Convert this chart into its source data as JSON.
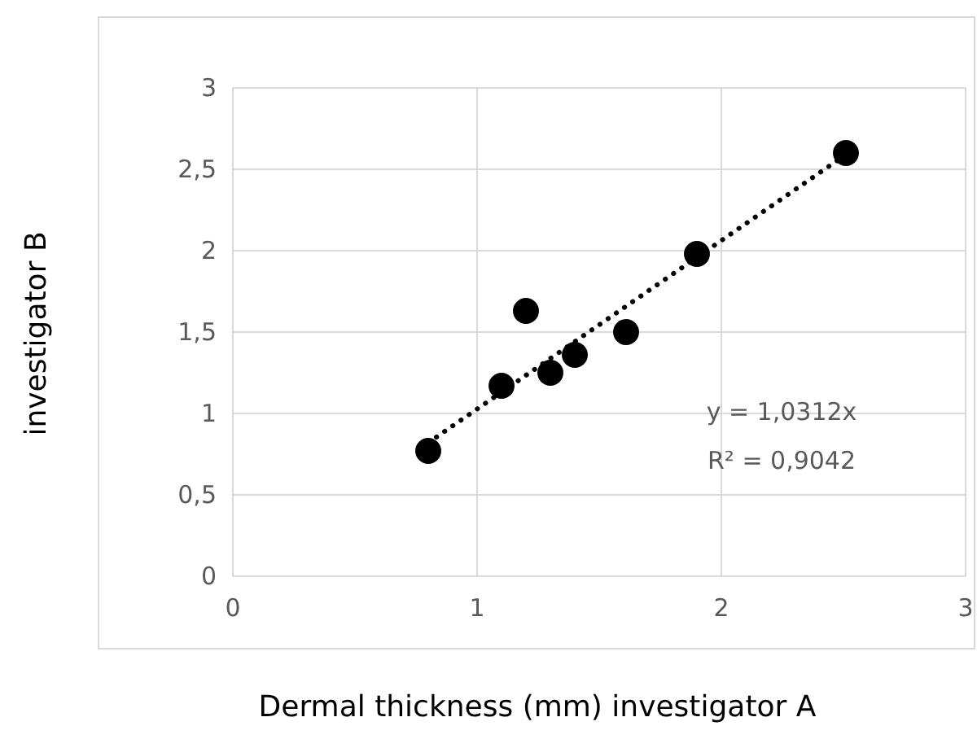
{
  "chart_data": {
    "type": "scatter",
    "xlabel": "Dermal thickness (mm) investigator A",
    "ylabel": "investigator B",
    "xlim": [
      0,
      3
    ],
    "xticks": [
      0,
      1,
      2,
      3
    ],
    "ylim": [
      0,
      3
    ],
    "yticks": [
      0,
      {
        "value": 0.5,
        "label": "0,5"
      },
      1,
      {
        "value": 1.5,
        "label": "1,5"
      },
      2,
      {
        "value": 2.5,
        "label": "2,5"
      },
      3
    ],
    "grid": true,
    "marker": "circle",
    "series": [
      {
        "color": "#000000",
        "x": [
          0.8,
          1.1,
          1.2,
          1.3,
          1.4,
          1.61,
          1.9,
          2.51
        ],
        "values": [
          0.77,
          1.17,
          1.63,
          1.25,
          1.36,
          1.5,
          1.98,
          2.6
        ]
      },
      {
        "type": "line",
        "color": "#000000",
        "line_style": "dotted",
        "marker": "none",
        "x": [
          0.8,
          2.5
        ],
        "values": [
          0.82,
          2.58
        ]
      }
    ],
    "annotations": [
      "y = 1,0312x",
      "R² = 0,9042"
    ]
  }
}
